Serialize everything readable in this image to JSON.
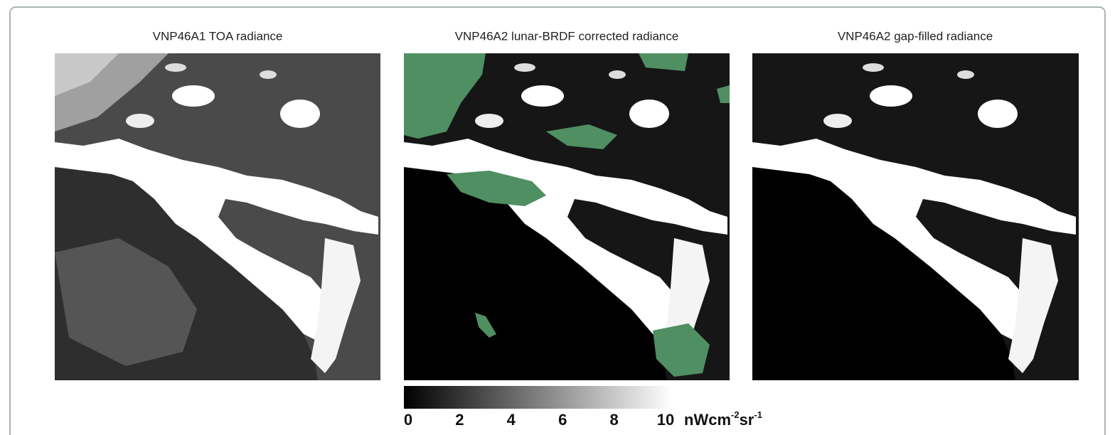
{
  "panels": [
    {
      "title": "VNP46A1 TOA radiance"
    },
    {
      "title": "VNP46A2 lunar-BRDF corrected radiance"
    },
    {
      "title": "VNP46A2 gap-filled radiance"
    }
  ],
  "colorbar": {
    "lim": [
      0,
      10
    ],
    "ticks": [
      0,
      2,
      4,
      6,
      8,
      10
    ],
    "unit": [
      {
        "text": "nWcm"
      },
      {
        "text": "-2",
        "sup": true
      },
      {
        "text": "sr"
      },
      {
        "text": "-1",
        "sup": true
      }
    ]
  }
}
